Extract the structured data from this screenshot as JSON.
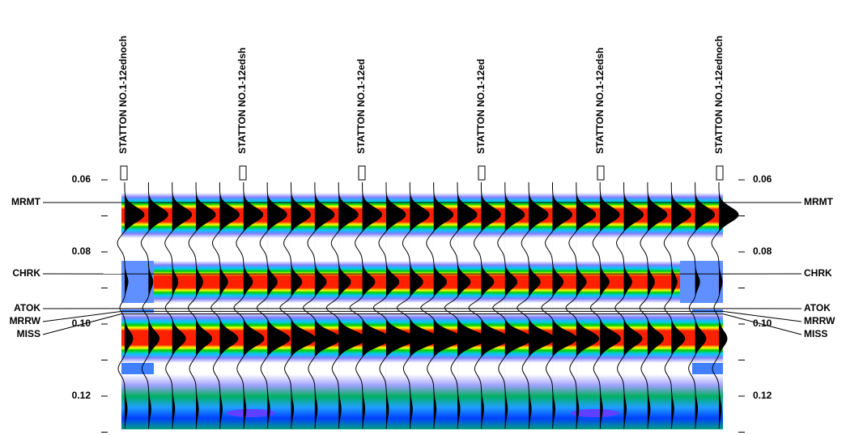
{
  "wells": [
    "STATTON NO.1-12ednoch",
    "STATTON NO.1-12edsh",
    "STATTON NO.1-12ed",
    "STATTON NO.1-12ed",
    "STATTON NO.1-12edsh",
    "STATTON NO.1-12ednoch"
  ],
  "axis": {
    "ticks": [
      0.06,
      0.08,
      0.1,
      0.12
    ],
    "tick_labels": [
      "0.06",
      "0.08",
      "0.10",
      "0.12"
    ],
    "minor_ticks": [
      0.07,
      0.09,
      0.11,
      0.13
    ]
  },
  "horizons": [
    {
      "name": "MRMT",
      "time": 0.0663
    },
    {
      "name": "CHRK",
      "time": 0.0861
    },
    {
      "name": "ATOK",
      "time": 0.0957
    },
    {
      "name": "MRRW",
      "time": 0.0965
    },
    {
      "name": "MISS",
      "time": 0.0972
    }
  ]
}
